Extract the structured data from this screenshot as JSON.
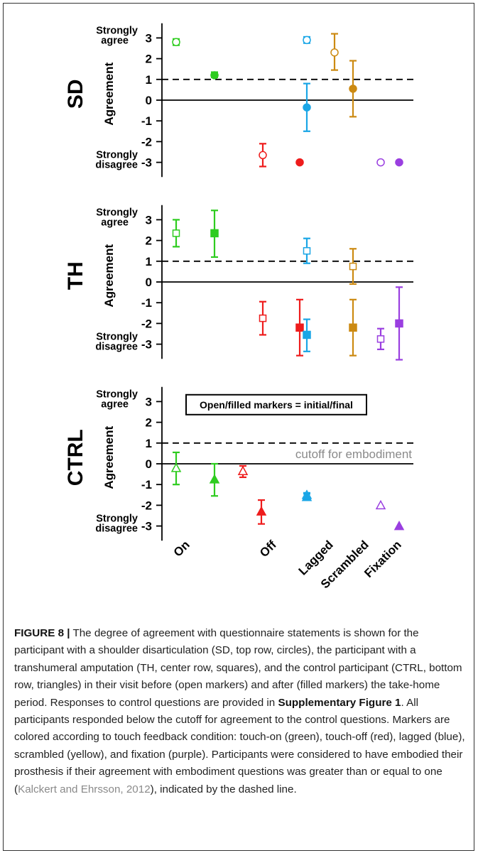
{
  "colors": {
    "On": "#2ecc1f",
    "Off": "#ee1c1c",
    "Lagged": "#1aa6e6",
    "Scrambled": "#cc8a12",
    "Fixation": "#9a3fe0"
  },
  "chart_data": [
    {
      "type": "scatter",
      "panel": "SD",
      "ylabel": "Agreement",
      "ylim": [
        -3.5,
        3.5
      ],
      "yticks": [
        3,
        2,
        1,
        0,
        -1,
        -2,
        -3
      ],
      "ytop_label": "Strongly agree",
      "ybottom_label": "Strongly disagree",
      "marker": "circle",
      "cutoff": 1,
      "series": [
        {
          "condition": "On",
          "phase": "initial",
          "mean": 2.8,
          "err_low": 2.65,
          "err_high": 2.95
        },
        {
          "condition": "On",
          "phase": "final",
          "mean": 1.2,
          "err_low": 1.1,
          "err_high": 1.35
        },
        {
          "condition": "Off",
          "phase": "initial",
          "mean": -2.65,
          "err_low": -3.2,
          "err_high": -2.1
        },
        {
          "condition": "Off",
          "phase": "final",
          "mean": -3.0,
          "err_low": null,
          "err_high": null
        },
        {
          "condition": "Lagged",
          "phase": "initial",
          "mean": 2.9,
          "err_low": 2.75,
          "err_high": 3.05
        },
        {
          "condition": "Lagged",
          "phase": "final",
          "mean": -0.35,
          "err_low": -1.5,
          "err_high": 0.8
        },
        {
          "condition": "Scrambled",
          "phase": "initial",
          "mean": 2.3,
          "err_low": 1.45,
          "err_high": 3.2
        },
        {
          "condition": "Scrambled",
          "phase": "final",
          "mean": 0.55,
          "err_low": -0.8,
          "err_high": 1.9
        },
        {
          "condition": "Fixation",
          "phase": "initial",
          "mean": -3.0,
          "err_low": null,
          "err_high": null
        },
        {
          "condition": "Fixation",
          "phase": "final",
          "mean": -3.0,
          "err_low": null,
          "err_high": null
        }
      ]
    },
    {
      "type": "scatter",
      "panel": "TH",
      "ylabel": "Agreement",
      "ylim": [
        -3.5,
        3.5
      ],
      "yticks": [
        3,
        2,
        1,
        0,
        -1,
        -2,
        -3
      ],
      "ytop_label": "Strongly agree",
      "ybottom_label": "Strongly disagree",
      "marker": "square",
      "cutoff": 1,
      "series": [
        {
          "condition": "On",
          "phase": "initial",
          "mean": 2.35,
          "err_low": 1.7,
          "err_high": 3.0
        },
        {
          "condition": "On",
          "phase": "final",
          "mean": 2.35,
          "err_low": 1.2,
          "err_high": 3.45
        },
        {
          "condition": "Off",
          "phase": "initial",
          "mean": -1.75,
          "err_low": -2.55,
          "err_high": -0.95
        },
        {
          "condition": "Off",
          "phase": "final",
          "mean": -2.2,
          "err_low": -3.55,
          "err_high": -0.85
        },
        {
          "condition": "Lagged",
          "phase": "initial",
          "mean": 1.5,
          "err_low": 0.9,
          "err_high": 2.1
        },
        {
          "condition": "Lagged",
          "phase": "final",
          "mean": -2.55,
          "err_low": -3.35,
          "err_high": -1.8
        },
        {
          "condition": "Scrambled",
          "phase": "initial",
          "mean": 0.75,
          "err_low": -0.1,
          "err_high": 1.6
        },
        {
          "condition": "Scrambled",
          "phase": "final",
          "mean": -2.2,
          "err_low": -3.55,
          "err_high": -0.85
        },
        {
          "condition": "Fixation",
          "phase": "initial",
          "mean": -2.75,
          "err_low": -3.25,
          "err_high": -2.25
        },
        {
          "condition": "Fixation",
          "phase": "final",
          "mean": -2.0,
          "err_low": -3.75,
          "err_high": -0.25
        }
      ]
    },
    {
      "type": "scatter",
      "panel": "CTRL",
      "ylabel": "Agreement",
      "ylim": [
        -3.5,
        3.5
      ],
      "yticks": [
        3,
        2,
        1,
        0,
        -1,
        -2,
        -3
      ],
      "ytop_label": "Strongly agree",
      "ybottom_label": "Strongly disagree",
      "marker": "triangle",
      "cutoff": 1,
      "cutoff_label": "cutoff for embodiment",
      "legend_text": "Open/filled markers = initial/final",
      "categories": [
        "On",
        "Off",
        "Lagged",
        "Scrambled",
        "Fixation"
      ],
      "series": [
        {
          "condition": "On",
          "phase": "initial",
          "mean": -0.2,
          "err_low": -1.0,
          "err_high": 0.55
        },
        {
          "condition": "On",
          "phase": "final",
          "mean": -0.75,
          "err_low": -1.55,
          "err_high": 0.0
        },
        {
          "condition": "Off",
          "phase": "initial",
          "mean": -0.35,
          "err_low": -0.65,
          "err_high": -0.1
        },
        {
          "condition": "Off",
          "phase": "final",
          "mean": -2.3,
          "err_low": -2.9,
          "err_high": -1.75
        },
        {
          "condition": "Lagged",
          "phase": "initial",
          "mean": -1.5,
          "err_low": -1.6,
          "err_high": -1.4
        },
        {
          "condition": "Lagged",
          "phase": "final",
          "mean": -1.6,
          "err_low": -1.7,
          "err_high": -1.45
        },
        {
          "condition": "Fixation",
          "phase": "initial",
          "mean": -2.0,
          "err_low": null,
          "err_high": null
        },
        {
          "condition": "Fixation",
          "phase": "final",
          "mean": -3.0,
          "err_low": null,
          "err_high": null
        }
      ]
    }
  ],
  "caption": {
    "figure_label": "FIGURE 8 |",
    "text_1": " The degree of agreement with questionnaire statements is shown for the participant with a shoulder disarticulation (SD, top row, circles), the participant with a transhumeral amputation (TH, center row, squares), and the control participant (CTRL, bottom row, triangles) in their visit before (open markers) and after (filled markers) the take-home period. Responses to control questions are provided in ",
    "bold_ref": "Supplementary Figure 1",
    "text_2": ". All participants responded below the cutoff for agreement to the control questions. Markers are colored according to touch feedback condition: touch-on (green), touch-off (red), lagged (blue), scrambled (yellow), and fixation (purple). Participants were considered to have embodied their prosthesis if their agreement with embodiment questions was greater than or equal to one (",
    "citation": "Kalckert and Ehrsson, 2012",
    "text_3": "), indicated by the dashed line."
  }
}
